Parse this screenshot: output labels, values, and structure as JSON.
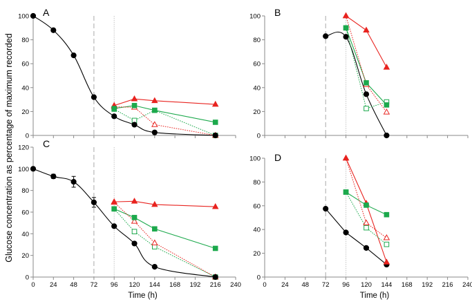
{
  "figure": {
    "ylabel": "Glucose concentration as percentage of maximum recorded",
    "colors": {
      "black": "#000000",
      "red": "#e8231f",
      "green": "#1ca94c",
      "grid": "#b5b5b5"
    }
  },
  "chart_data": [
    {
      "panel": "A",
      "type": "line",
      "xlabel": "",
      "xticks": [],
      "xlim": [
        0,
        240
      ],
      "ylim": [
        0,
        100
      ],
      "yticks": [
        0,
        20,
        40,
        60,
        80,
        100
      ],
      "vlines": [
        72,
        96
      ],
      "series": [
        {
          "name": "black-filled-circle",
          "style": "smooth-solid",
          "color": "black",
          "marker": "circle",
          "filled": true,
          "x": [
            0,
            24,
            48,
            72,
            96,
            120,
            144,
            216
          ],
          "y": [
            100,
            88,
            67,
            32,
            16,
            9,
            2.5,
            0
          ]
        },
        {
          "name": "red-filled-triangle",
          "style": "solid",
          "color": "red",
          "marker": "triangle",
          "filled": true,
          "x": [
            96,
            120,
            144,
            216
          ],
          "y": [
            25,
            30.5,
            29,
            26
          ]
        },
        {
          "name": "green-filled-square",
          "style": "solid",
          "color": "green",
          "marker": "square",
          "filled": true,
          "x": [
            96,
            120,
            144,
            216
          ],
          "y": [
            22.5,
            25,
            21,
            11
          ]
        },
        {
          "name": "green-open-square",
          "style": "dotted",
          "color": "green",
          "marker": "square",
          "filled": false,
          "x": [
            96,
            120,
            144,
            216
          ],
          "y": [
            22,
            12.5,
            21,
            0
          ]
        },
        {
          "name": "red-open-triangle",
          "style": "dotted",
          "color": "red",
          "marker": "triangle",
          "filled": false,
          "x": [
            96,
            120,
            144,
            216
          ],
          "y": [
            24,
            23.5,
            9,
            0
          ]
        }
      ]
    },
    {
      "panel": "B",
      "type": "line",
      "xlabel": "",
      "xticks": [],
      "xlim": [
        0,
        240
      ],
      "ylim": [
        0,
        100
      ],
      "yticks": [
        0,
        20,
        40,
        60,
        80,
        100
      ],
      "vlines": [
        72,
        96
      ],
      "series": [
        {
          "name": "black-filled-circle",
          "style": "smooth-solid",
          "color": "black",
          "marker": "circle",
          "filled": true,
          "x": [
            72,
            96,
            120,
            144
          ],
          "y": [
            83,
            82.5,
            34.5,
            0
          ]
        },
        {
          "name": "red-filled-triangle",
          "style": "solid",
          "color": "red",
          "marker": "triangle",
          "filled": true,
          "x": [
            96,
            120,
            144
          ],
          "y": [
            100,
            88,
            57
          ]
        },
        {
          "name": "green-filled-square",
          "style": "solid",
          "color": "green",
          "marker": "square",
          "filled": true,
          "x": [
            96,
            120,
            144
          ],
          "y": [
            90,
            44,
            25.5
          ]
        },
        {
          "name": "green-open-square",
          "style": "dotted",
          "color": "green",
          "marker": "square",
          "filled": false,
          "x": [
            96,
            120,
            144
          ],
          "y": [
            90,
            22.5,
            28
          ]
        },
        {
          "name": "red-open-triangle",
          "style": "dotted",
          "color": "red",
          "marker": "triangle",
          "filled": false,
          "x": [
            96,
            120,
            144
          ],
          "y": [
            100,
            42.5,
            19.5
          ]
        }
      ]
    },
    {
      "panel": "C",
      "type": "line",
      "xlabel": "Time (h)",
      "xticks": [
        0,
        24,
        48,
        72,
        96,
        120,
        144,
        168,
        192,
        216,
        240
      ],
      "xlim": [
        0,
        240
      ],
      "ylim": [
        0,
        120
      ],
      "yticks": [
        0,
        20,
        40,
        60,
        80,
        100,
        120
      ],
      "vlines": [
        72,
        96
      ],
      "series": [
        {
          "name": "black-filled-circle",
          "style": "smooth-solid",
          "color": "black",
          "marker": "circle",
          "filled": true,
          "x": [
            0,
            24,
            48,
            72,
            96,
            120,
            144,
            216
          ],
          "y": [
            100,
            93,
            88,
            69,
            47,
            31,
            9.5,
            0
          ],
          "yerr": [
            0,
            2,
            5,
            4.5,
            0,
            0,
            0,
            0
          ]
        },
        {
          "name": "red-filled-triangle",
          "style": "solid",
          "color": "red",
          "marker": "triangle",
          "filled": true,
          "x": [
            96,
            120,
            144,
            216
          ],
          "y": [
            69.5,
            70,
            67,
            65
          ]
        },
        {
          "name": "green-filled-square",
          "style": "solid",
          "color": "green",
          "marker": "square",
          "filled": true,
          "x": [
            96,
            120,
            144,
            216
          ],
          "y": [
            63,
            55,
            44.5,
            26.5
          ]
        },
        {
          "name": "green-open-square",
          "style": "dotted",
          "color": "green",
          "marker": "square",
          "filled": false,
          "x": [
            96,
            120,
            144,
            216
          ],
          "y": [
            63,
            42,
            28,
            0
          ]
        },
        {
          "name": "red-open-triangle",
          "style": "dotted",
          "color": "red",
          "marker": "triangle",
          "filled": false,
          "x": [
            96,
            120,
            144,
            216
          ],
          "y": [
            69,
            51.5,
            31.5,
            0
          ]
        }
      ]
    },
    {
      "panel": "D",
      "type": "line",
      "xlabel": "Time (h)",
      "xticks": [
        0,
        24,
        48,
        72,
        96,
        120,
        144,
        168,
        192,
        216,
        240
      ],
      "xlim": [
        0,
        240
      ],
      "ylim": [
        0,
        100
      ],
      "yticks": [
        0,
        20,
        40,
        60,
        80,
        100
      ],
      "vlines": [
        72,
        96
      ],
      "series": [
        {
          "name": "black-filled-circle",
          "style": "solid",
          "color": "black",
          "marker": "circle",
          "filled": true,
          "x": [
            72,
            96,
            120,
            144
          ],
          "y": [
            57.5,
            37.5,
            24.5,
            10.5
          ]
        },
        {
          "name": "red-filled-triangle",
          "style": "solid",
          "color": "red",
          "marker": "triangle",
          "filled": true,
          "x": [
            96,
            120,
            144
          ],
          "y": [
            100,
            62,
            12.5
          ]
        },
        {
          "name": "green-filled-square",
          "style": "solid",
          "color": "green",
          "marker": "square",
          "filled": true,
          "x": [
            96,
            120,
            144
          ],
          "y": [
            71.5,
            60.5,
            52.5
          ]
        },
        {
          "name": "green-open-square",
          "style": "dotted",
          "color": "green",
          "marker": "square",
          "filled": false,
          "x": [
            96,
            120,
            144
          ],
          "y": [
            71.5,
            41.5,
            27.5
          ]
        },
        {
          "name": "red-open-triangle",
          "style": "dotted",
          "color": "red",
          "marker": "triangle",
          "filled": false,
          "x": [
            96,
            120,
            144
          ],
          "y": [
            100,
            45.5,
            33
          ]
        }
      ]
    }
  ]
}
